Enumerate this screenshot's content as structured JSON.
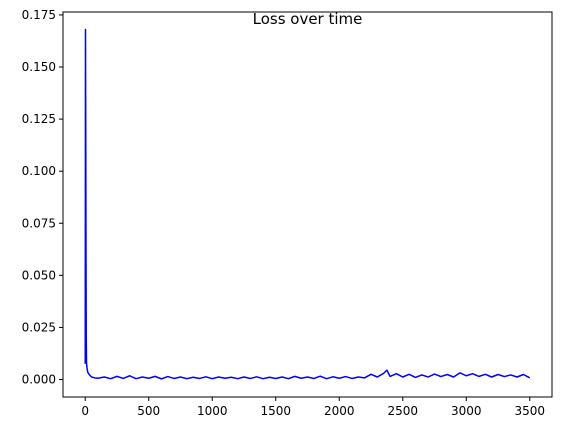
{
  "chart_data": {
    "type": "line",
    "title": "Loss over time",
    "xlabel": "",
    "ylabel": "",
    "xlim": [
      -175,
      3675
    ],
    "ylim": [
      -0.0084,
      0.1764
    ],
    "xticks": [
      0,
      500,
      1000,
      1500,
      2000,
      2500,
      3000,
      3500
    ],
    "xtick_labels": [
      "0",
      "500",
      "1000",
      "1500",
      "2000",
      "2500",
      "3000",
      "3500"
    ],
    "yticks": [
      0.0,
      0.025,
      0.05,
      0.075,
      0.1,
      0.125,
      0.15,
      0.175
    ],
    "ytick_labels": [
      "0.000",
      "0.025",
      "0.050",
      "0.075",
      "0.100",
      "0.125",
      "0.150",
      "0.175"
    ],
    "grid": false,
    "legend": "none",
    "series": [
      {
        "color": "#0000ff",
        "x": [
          0,
          2,
          4,
          6,
          8,
          10,
          15,
          20,
          30,
          40,
          50,
          75,
          100,
          150,
          200,
          250,
          300,
          350,
          400,
          450,
          500,
          550,
          600,
          650,
          700,
          750,
          800,
          850,
          900,
          950,
          1000,
          1050,
          1100,
          1150,
          1200,
          1250,
          1300,
          1350,
          1400,
          1450,
          1500,
          1550,
          1600,
          1650,
          1700,
          1750,
          1800,
          1850,
          1900,
          1950,
          2000,
          2050,
          2100,
          2150,
          2200,
          2250,
          2300,
          2350,
          2375,
          2400,
          2450,
          2500,
          2550,
          2600,
          2650,
          2700,
          2750,
          2800,
          2850,
          2900,
          2950,
          3000,
          3050,
          3100,
          3150,
          3200,
          3250,
          3300,
          3350,
          3400,
          3450,
          3500
        ],
        "y": [
          0.0075,
          0.168,
          0.12,
          0.06,
          0.02,
          0.008,
          0.005,
          0.0035,
          0.0025,
          0.0018,
          0.0012,
          0.0008,
          0.0006,
          0.0012,
          0.0004,
          0.0015,
          0.0005,
          0.0018,
          0.0004,
          0.0012,
          0.0006,
          0.0015,
          0.0003,
          0.0014,
          0.0005,
          0.0012,
          0.0004,
          0.0011,
          0.0005,
          0.0013,
          0.0004,
          0.0012,
          0.0006,
          0.0011,
          0.0004,
          0.0012,
          0.0005,
          0.0013,
          0.0004,
          0.0011,
          0.0005,
          0.0012,
          0.0004,
          0.0015,
          0.0006,
          0.0012,
          0.0005,
          0.0016,
          0.0004,
          0.0013,
          0.0006,
          0.0014,
          0.0005,
          0.0012,
          0.0008,
          0.0025,
          0.0012,
          0.003,
          0.0045,
          0.0015,
          0.0028,
          0.0012,
          0.0025,
          0.001,
          0.0022,
          0.0012,
          0.0026,
          0.0014,
          0.0024,
          0.0012,
          0.0032,
          0.0018,
          0.0028,
          0.0015,
          0.0025,
          0.0012,
          0.0024,
          0.0014,
          0.0022,
          0.0012,
          0.0024,
          0.0008
        ]
      }
    ]
  }
}
